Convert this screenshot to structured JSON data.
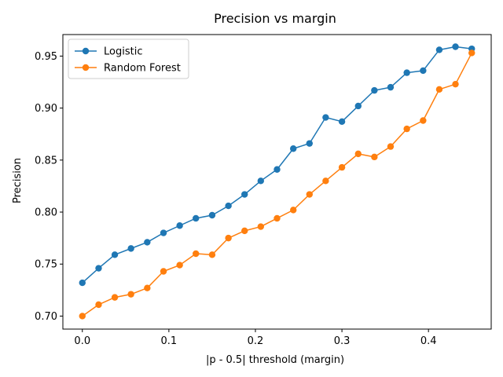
{
  "chart_data": {
    "type": "line",
    "title": "Precision vs margin",
    "xlabel": "|p - 0.5| threshold (margin)",
    "ylabel": "Precision",
    "xlim": [
      -0.0225,
      0.4725
    ],
    "ylim": [
      0.6875,
      0.9707
    ],
    "xticks": [
      0.0,
      0.1,
      0.2,
      0.3,
      0.4
    ],
    "xtick_labels": [
      "0.0",
      "0.1",
      "0.2",
      "0.3",
      "0.4"
    ],
    "yticks": [
      0.7,
      0.75,
      0.8,
      0.85,
      0.9,
      0.95
    ],
    "ytick_labels": [
      "0.70",
      "0.75",
      "0.80",
      "0.85",
      "0.90",
      "0.95"
    ],
    "grid": false,
    "legend": "top-left",
    "x": [
      0.0,
      0.0188,
      0.0375,
      0.0562,
      0.075,
      0.0938,
      0.1125,
      0.1312,
      0.15,
      0.1688,
      0.1875,
      0.2062,
      0.225,
      0.2438,
      0.2625,
      0.2812,
      0.3,
      0.3188,
      0.3375,
      0.3562,
      0.375,
      0.3938,
      0.4125,
      0.4312,
      0.45
    ],
    "series": [
      {
        "name": "Logistic",
        "color": "#1f77b4",
        "values": [
          0.732,
          0.746,
          0.759,
          0.765,
          0.771,
          0.78,
          0.787,
          0.794,
          0.797,
          0.806,
          0.817,
          0.83,
          0.841,
          0.861,
          0.866,
          0.891,
          0.887,
          0.902,
          0.917,
          0.92,
          0.934,
          0.936,
          0.956,
          0.959,
          0.957
        ]
      },
      {
        "name": "Random Forest",
        "color": "#ff7f0e",
        "values": [
          0.7,
          0.711,
          0.718,
          0.721,
          0.727,
          0.743,
          0.749,
          0.76,
          0.759,
          0.775,
          0.782,
          0.786,
          0.794,
          0.802,
          0.817,
          0.83,
          0.843,
          0.856,
          0.853,
          0.863,
          0.88,
          0.888,
          0.918,
          0.923,
          0.953
        ]
      }
    ]
  }
}
